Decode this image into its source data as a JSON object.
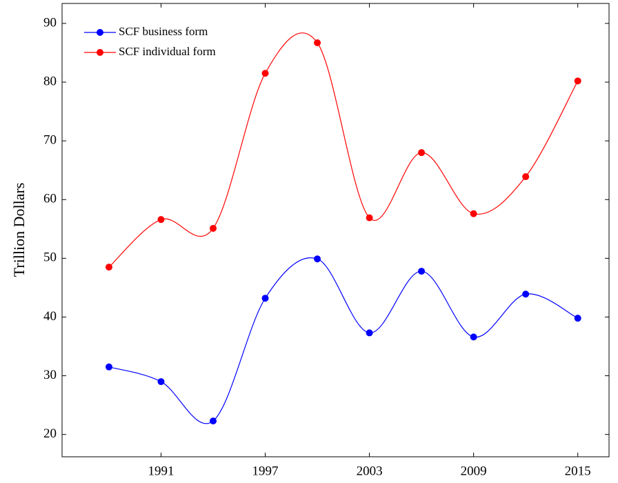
{
  "chart_data": {
    "type": "line",
    "y_label": "Trillion Dollars",
    "x": [
      1988,
      1991,
      1994,
      1997,
      2000,
      2003,
      2006,
      2009,
      2012,
      2015
    ],
    "series": [
      {
        "name": "SCF business form",
        "color": "#0000ff",
        "values": [
          31.5,
          29,
          22.3,
          43.2,
          49.9,
          37.3,
          47.8,
          36.6,
          43.9,
          39.8
        ]
      },
      {
        "name": "SCF individual form",
        "color": "#ff0000",
        "values": [
          48.5,
          56.6,
          55.1,
          81.5,
          86.7,
          56.9,
          68.0,
          57.6,
          63.9,
          80.2
        ]
      }
    ],
    "xlim": [
      1985.3,
      2016.8
    ],
    "xticks": [
      1991,
      1997,
      2003,
      2009,
      2015
    ],
    "ylim": [
      16.2,
      93.4
    ],
    "yticks": [
      20,
      30,
      40,
      50,
      60,
      70,
      80,
      90
    ],
    "smooth": true,
    "legend": "upper-left"
  }
}
